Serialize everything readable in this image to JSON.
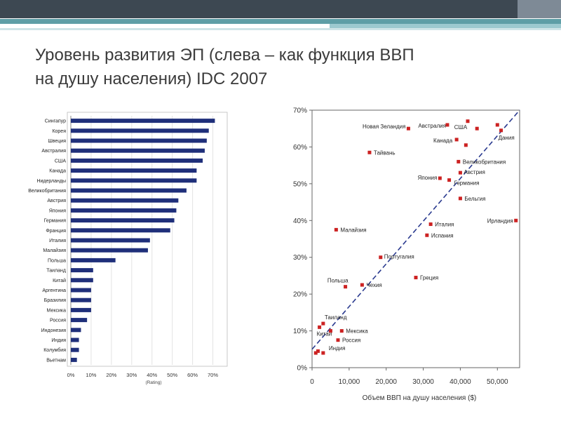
{
  "slide": {
    "title_line1": "Уровень развития ЭП  (слева – как функция ВВП",
    "title_line2": "на душу населения) IDC 2007"
  },
  "chart_data": [
    {
      "type": "bar",
      "orientation": "horizontal",
      "categories": [
        "Сингапур",
        "Корея",
        "Швеция",
        "Австралия",
        "США",
        "Канада",
        "Нидерланды",
        "Великобритания",
        "Австрия",
        "Япония",
        "Германия",
        "Франция",
        "Италия",
        "Малайзия",
        "Польша",
        "Таиланд",
        "Китай",
        "Аргентина",
        "Бразилия",
        "Мексика",
        "Россия",
        "Индонезия",
        "Индия",
        "Колумбия",
        "Вьетнам"
      ],
      "values": [
        71,
        68,
        67,
        66,
        65,
        62,
        62,
        57,
        53,
        52,
        51,
        49,
        39,
        38,
        22,
        11,
        11,
        10,
        10,
        10,
        8,
        5,
        4,
        4,
        3
      ],
      "xlabel": "(Rating)",
      "xticks": [
        "0%",
        "10%",
        "20%",
        "30%",
        "40%",
        "50%",
        "60%",
        "70%"
      ],
      "xlim": [
        0,
        75
      ],
      "grid": true,
      "bar_color": "#1f2f7a"
    },
    {
      "type": "scatter",
      "xlabel": "Объем ВВП на душу населения ($)",
      "xticks": [
        "0",
        "10,000",
        "20,000",
        "30,000",
        "40,000",
        "50,000"
      ],
      "yticks": [
        "0%",
        "10%",
        "20%",
        "30%",
        "40%",
        "50%",
        "60%",
        "70%"
      ],
      "xlim": [
        0,
        56000
      ],
      "ylim": [
        0,
        70
      ],
      "trendline": {
        "from": [
          0,
          5
        ],
        "to": [
          56000,
          70
        ],
        "style": "dashed",
        "color": "#2a3a8f"
      },
      "marker_color": "#cc2222",
      "points": [
        {
          "label": "Новая Зеландия",
          "x": 26000,
          "y": 65
        },
        {
          "label": "Австралия",
          "x": 36500,
          "y": 66
        },
        {
          "label": "США",
          "x": 44500,
          "y": 65
        },
        {
          "label": "Дания",
          "x": 51000,
          "y": 64.5
        },
        {
          "label": "",
          "x": 42000,
          "y": 67
        },
        {
          "label": "",
          "x": 50000,
          "y": 66
        },
        {
          "label": "Канада",
          "x": 39000,
          "y": 62
        },
        {
          "label": "",
          "x": 41500,
          "y": 60.5
        },
        {
          "label": "Тайвань",
          "x": 15500,
          "y": 58.5
        },
        {
          "label": "Великобритания",
          "x": 39500,
          "y": 56
        },
        {
          "label": "Австрия",
          "x": 40000,
          "y": 53
        },
        {
          "label": "Япония",
          "x": 34500,
          "y": 51.5
        },
        {
          "label": "Германия",
          "x": 37000,
          "y": 51
        },
        {
          "label": "Бельгия",
          "x": 40000,
          "y": 46
        },
        {
          "label": "Ирландия",
          "x": 55000,
          "y": 40
        },
        {
          "label": "Малайзия",
          "x": 6500,
          "y": 37.5
        },
        {
          "label": "Италия",
          "x": 32000,
          "y": 39
        },
        {
          "label": "Испания",
          "x": 31000,
          "y": 36
        },
        {
          "label": "Португалия",
          "x": 18500,
          "y": 30
        },
        {
          "label": "Греция",
          "x": 28000,
          "y": 24.5
        },
        {
          "label": "Польша",
          "x": 9000,
          "y": 22
        },
        {
          "label": "Чехия",
          "x": 13500,
          "y": 22.5
        },
        {
          "label": "Таиланд",
          "x": 3000,
          "y": 12
        },
        {
          "label": "Китай",
          "x": 2000,
          "y": 11
        },
        {
          "label": "Мексика",
          "x": 8000,
          "y": 10
        },
        {
          "label": "",
          "x": 5000,
          "y": 10
        },
        {
          "label": "Россия",
          "x": 7000,
          "y": 7.5
        },
        {
          "label": "Индия",
          "x": 3000,
          "y": 4
        },
        {
          "label": "",
          "x": 1000,
          "y": 4
        },
        {
          "label": "",
          "x": 1600,
          "y": 4.5
        }
      ]
    }
  ]
}
